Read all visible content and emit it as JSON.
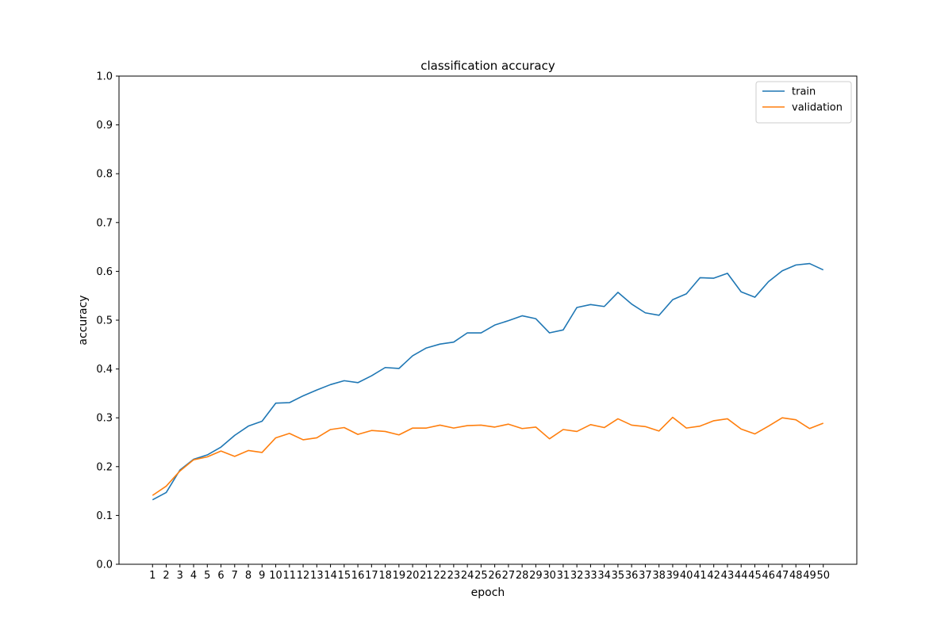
{
  "chart_data": {
    "type": "line",
    "title": "classification accuracy",
    "xlabel": "epoch",
    "ylabel": "accuracy",
    "ylim": [
      0.0,
      1.0
    ],
    "yticks": [
      "0.0",
      "0.1",
      "0.2",
      "0.3",
      "0.4",
      "0.5",
      "0.6",
      "0.7",
      "0.8",
      "0.9",
      "1.0"
    ],
    "x": [
      1,
      2,
      3,
      4,
      5,
      6,
      7,
      8,
      9,
      10,
      11,
      12,
      13,
      14,
      15,
      16,
      17,
      18,
      19,
      20,
      21,
      22,
      23,
      24,
      25,
      26,
      27,
      28,
      29,
      30,
      31,
      32,
      33,
      34,
      35,
      36,
      37,
      38,
      39,
      40,
      41,
      42,
      43,
      44,
      45,
      46,
      47,
      48,
      49,
      50
    ],
    "grid": false,
    "legend_position": "top-right",
    "series": [
      {
        "name": "train",
        "color": "#1f77b4",
        "values": [
          0.132,
          0.147,
          0.193,
          0.215,
          0.224,
          0.24,
          0.264,
          0.283,
          0.293,
          0.33,
          0.331,
          0.345,
          0.357,
          0.368,
          0.376,
          0.372,
          0.386,
          0.403,
          0.401,
          0.427,
          0.443,
          0.451,
          0.455,
          0.474,
          0.474,
          0.49,
          0.499,
          0.509,
          0.503,
          0.474,
          0.48,
          0.526,
          0.532,
          0.528,
          0.557,
          0.533,
          0.515,
          0.51,
          0.542,
          0.554,
          0.587,
          0.586,
          0.596,
          0.558,
          0.547,
          0.579,
          0.601,
          0.613,
          0.616,
          0.603
        ]
      },
      {
        "name": "validation",
        "color": "#ff7f0e",
        "values": [
          0.141,
          0.16,
          0.191,
          0.214,
          0.22,
          0.232,
          0.221,
          0.233,
          0.229,
          0.259,
          0.268,
          0.255,
          0.259,
          0.276,
          0.28,
          0.266,
          0.274,
          0.272,
          0.265,
          0.279,
          0.279,
          0.285,
          0.279,
          0.284,
          0.285,
          0.281,
          0.287,
          0.278,
          0.281,
          0.257,
          0.276,
          0.272,
          0.286,
          0.28,
          0.298,
          0.285,
          0.282,
          0.273,
          0.301,
          0.279,
          0.283,
          0.294,
          0.298,
          0.277,
          0.267,
          0.283,
          0.3,
          0.296,
          0.278,
          0.289
        ]
      }
    ]
  }
}
